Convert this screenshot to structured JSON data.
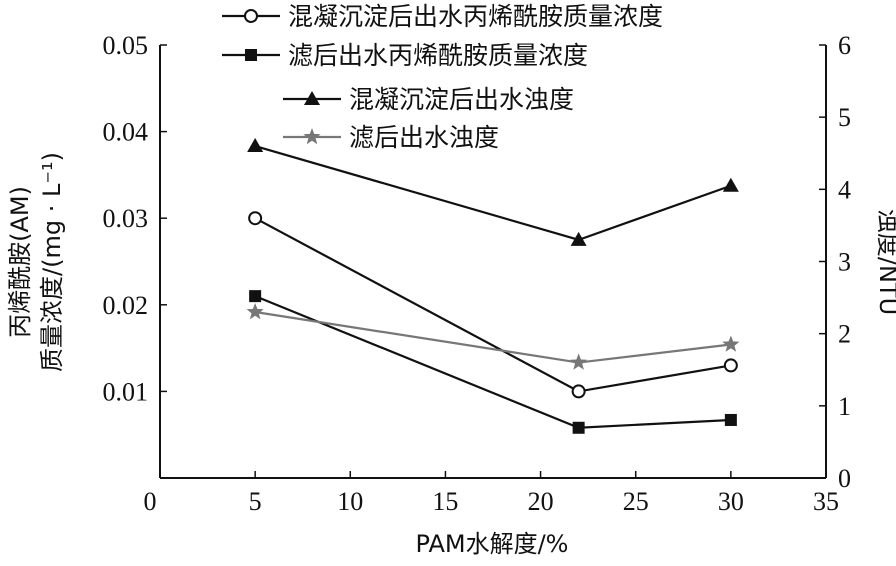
{
  "chart_data": {
    "type": "line",
    "xlabel": "PAM水解度/%",
    "ylabel_left_line1": "丙烯酰胺(AM)",
    "ylabel_left_line2": "质量浓度/(mg · L⁻¹)",
    "ylabel_right": "浊度/NTU",
    "xlim": [
      0,
      35
    ],
    "ylim_left": [
      0,
      0.05
    ],
    "ylim_right": [
      0,
      6
    ],
    "x_ticks": [
      "0",
      "5",
      "10",
      "15",
      "20",
      "25",
      "30",
      "35"
    ],
    "y_left_ticks": [
      "0.01",
      "0.02",
      "0.03",
      "0.04",
      "0.05"
    ],
    "y_right_ticks": [
      "0",
      "1",
      "2",
      "3",
      "4",
      "5",
      "6"
    ],
    "grid": false,
    "legend_position": "top",
    "series": [
      {
        "name": "混凝沉淀后出水丙烯酰胺质量浓度",
        "axis": "left",
        "marker": "circle-open",
        "color": "#111111",
        "x": [
          5,
          22,
          30
        ],
        "values": [
          0.03,
          0.01,
          0.013
        ]
      },
      {
        "name": "滤后出水丙烯酰胺质量浓度",
        "axis": "left",
        "marker": "square",
        "color": "#111111",
        "x": [
          5,
          22,
          30
        ],
        "values": [
          0.021,
          0.0058,
          0.0067
        ]
      },
      {
        "name": "混凝沉淀后出水浊度",
        "axis": "right",
        "marker": "triangle",
        "color": "#111111",
        "x": [
          5,
          22,
          30
        ],
        "values": [
          4.6,
          3.3,
          4.05
        ]
      },
      {
        "name": "滤后出水浊度",
        "axis": "right",
        "marker": "star",
        "color": "#777777",
        "x": [
          5,
          22,
          30
        ],
        "values": [
          2.3,
          1.6,
          1.85
        ]
      }
    ]
  }
}
